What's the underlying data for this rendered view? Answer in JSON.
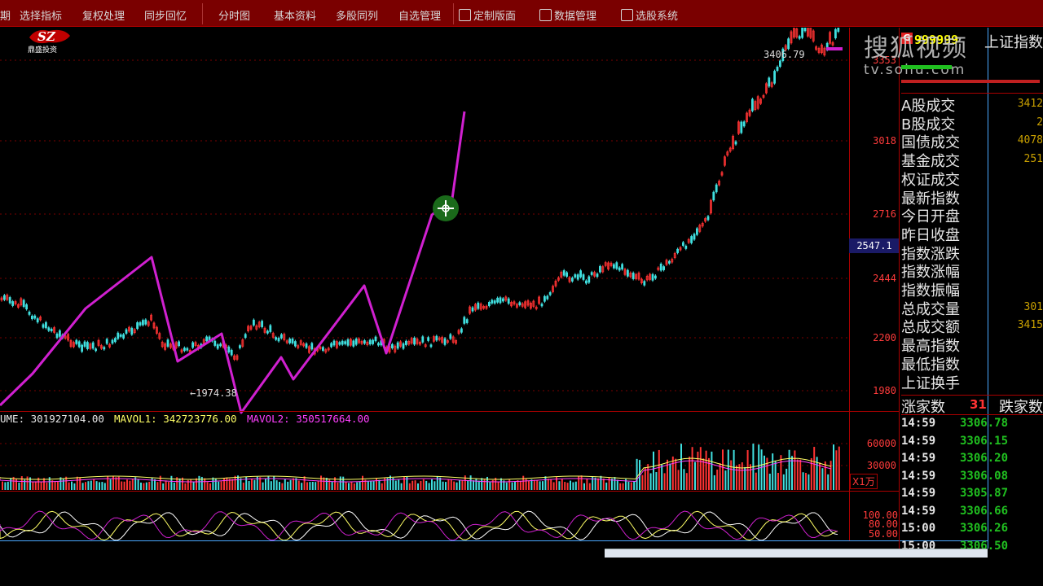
{
  "toolbar": {
    "items": [
      {
        "label": "期"
      },
      {
        "label": "选择指标"
      },
      {
        "label": "复权处理"
      },
      {
        "label": "同步回忆"
      },
      {
        "label": "分时图"
      },
      {
        "label": "基本资料"
      },
      {
        "label": "多股同列"
      },
      {
        "label": "自选管理"
      },
      {
        "label": "定制版面"
      },
      {
        "label": "数据管理"
      },
      {
        "label": "选股系统"
      }
    ]
  },
  "logo": {
    "subtitle": "鼎盛投资"
  },
  "price_axis": [
    "3353",
    "3018",
    "2716",
    "2444",
    "2200",
    "1980"
  ],
  "volume_axis": [
    "60000",
    "30000"
  ],
  "volume_unit": "X1万",
  "osc_axis": [
    "100.00",
    "80.00",
    "50.00"
  ],
  "current_price": "2547.1",
  "annotations": {
    "high": "3406.79",
    "low": "←1974.38"
  },
  "volume_indicator": {
    "volume": "UME: 301927104.00",
    "mavol1": "MAVOL1: 342723776.00",
    "mavol2": "MAVOL2: 350517664.00"
  },
  "watermark": {
    "brand": "搜狐视频",
    "url": "tv.sohu.com"
  },
  "header": {
    "code": "999999",
    "name": "上证指数",
    "badge": "G"
  },
  "stats": [
    {
      "label": "A股成交",
      "value": "3412"
    },
    {
      "label": "B股成交",
      "value": "2"
    },
    {
      "label": "国债成交",
      "value": "4078"
    },
    {
      "label": "基金成交",
      "value": "251"
    },
    {
      "label": "权证成交",
      "value": ""
    },
    {
      "label": "最新指数",
      "value": ""
    },
    {
      "label": "今日开盘",
      "value": ""
    },
    {
      "label": "昨日收盘",
      "value": ""
    },
    {
      "label": "指数涨跌",
      "value": ""
    },
    {
      "label": "指数涨幅",
      "value": ""
    },
    {
      "label": "指数振幅",
      "value": ""
    },
    {
      "label": "总成交量",
      "value": "301"
    },
    {
      "label": "总成交额",
      "value": "3415"
    },
    {
      "label": "最高指数",
      "value": ""
    },
    {
      "label": "最低指数",
      "value": ""
    },
    {
      "label": "上证换手",
      "value": ""
    }
  ],
  "breadth": {
    "up_label": "涨家数",
    "up_value": "31",
    "down_label": "跌家数"
  },
  "ticks": [
    {
      "time": "14:59",
      "price": "3306.78"
    },
    {
      "time": "14:59",
      "price": "3306.15"
    },
    {
      "time": "14:59",
      "price": "3306.20"
    },
    {
      "time": "14:59",
      "price": "3306.08"
    },
    {
      "time": "14:59",
      "price": "3305.87"
    },
    {
      "time": "14:59",
      "price": "3306.66"
    },
    {
      "time": "15:00",
      "price": "3306.26"
    },
    {
      "time": "15:00",
      "price": "3306.50"
    }
  ],
  "colors": {
    "up": "#ff3333",
    "down": "#40e0e0",
    "drawn": "#d020d0",
    "mavol1": "#ffff66",
    "mavol2": "#ff40ff"
  }
}
